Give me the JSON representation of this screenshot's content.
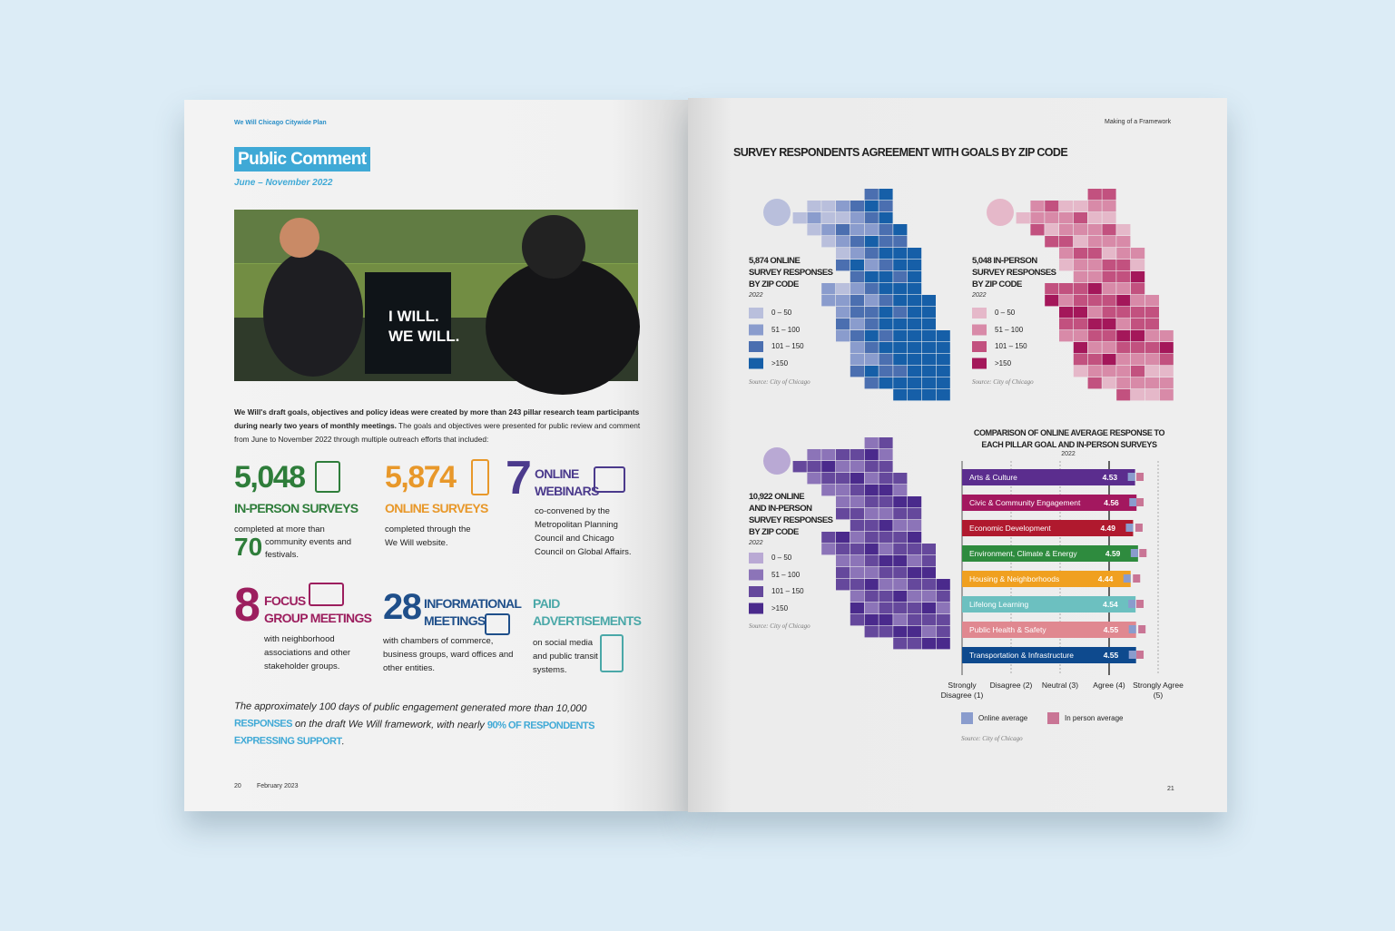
{
  "left_page": {
    "header": "We Will Chicago Citywide Plan",
    "title": "Public Comment",
    "date": "June – November 2022",
    "photo": {
      "sign_lines": [
        "I WILL.",
        "WE WILL."
      ]
    },
    "intro": {
      "bold": "We Will's draft goals, objectives and policy ideas were created by more than 243 pillar research team participants during nearly two years of monthly meetings.",
      "text": "The goals and objectives were presented for public review and comment from June to November 2022 through multiple outreach efforts that included:"
    },
    "stats": [
      {
        "number": "5,048",
        "label": [
          "IN-PERSON SURVEYS"
        ],
        "text": "completed at more than",
        "second_number": "70",
        "second_text": "community events and festivals.",
        "color": "#2e7d3a"
      },
      {
        "number": "5,874",
        "label": [
          "ONLINE SURVEYS"
        ],
        "text": "completed through the We Will website.",
        "color": "#e8982a"
      },
      {
        "number": "7",
        "label": [
          "ONLINE",
          "WEBINARS"
        ],
        "text": "co-convened by the Metropolitan Planning Council and Chicago Council on Global Affairs.",
        "color": "#4b3a8c"
      },
      {
        "number": "8",
        "label": [
          "FOCUS",
          "GROUP MEETINGS"
        ],
        "text": "with neighborhood associations and other stakeholder groups.",
        "color": "#9c1e5e"
      },
      {
        "number": "28",
        "label": [
          "INFORMATIONAL",
          "MEETINGS"
        ],
        "text": "with chambers of commerce, business groups, ward offices and other entities.",
        "color": "#1f4f8a"
      },
      {
        "label": [
          "PAID",
          "ADVERTISEMENTS"
        ],
        "text": "on social media and public transit systems.",
        "color": "#4aa8a8"
      }
    ],
    "closing": {
      "text1": "The approximately 100 days of public engagement generated more than 10,000",
      "highlight1": "RESPONSES",
      "text2": "on the draft We Will framework, with nearly",
      "highlight2": "90% OF RESPONDENTS EXPRESSING SUPPORT",
      "end": "."
    },
    "footer": {
      "page": "20",
      "date": "February 2023"
    }
  },
  "right_page": {
    "header": "Making of a Framework",
    "title": "SURVEY RESPONDENTS AGREEMENT WITH GOALS BY ZIP CODE",
    "maps": [
      {
        "label": [
          "5,874 ONLINE",
          "SURVEY RESPONSES",
          "BY ZIP CODE"
        ],
        "year": "2022",
        "legend": [
          {
            "label": "0 – 50",
            "color": "#b9bfdc"
          },
          {
            "label": "51 – 100",
            "color": "#8a9ccd"
          },
          {
            "label": "101 – 150",
            "color": "#4b6fb0"
          },
          {
            "label": ">150",
            "color": "#165fa8"
          }
        ],
        "source": "Source: City of Chicago"
      },
      {
        "label": [
          "5,048 IN-PERSON",
          "SURVEY RESPONSES",
          "BY ZIP CODE"
        ],
        "year": "2022",
        "legend": [
          {
            "label": "0 – 50",
            "color": "#e5b8c9"
          },
          {
            "label": "51 – 100",
            "color": "#d88aa8"
          },
          {
            "label": "101 – 150",
            "color": "#c2517f"
          },
          {
            "label": ">150",
            "color": "#a4175a"
          }
        ],
        "source": "Source: City of Chicago"
      },
      {
        "label": [
          "10,922 ONLINE",
          "AND IN-PERSON",
          "SURVEY RESPONSES",
          "BY ZIP CODE"
        ],
        "year": "2022",
        "legend": [
          {
            "label": "0 – 50",
            "color": "#b9a9d4"
          },
          {
            "label": "51 – 100",
            "color": "#8c74b8"
          },
          {
            "label": "101 – 150",
            "color": "#65489c"
          },
          {
            "label": ">150",
            "color": "#4a2a8c"
          }
        ],
        "source": "Source: City of Chicago"
      }
    ],
    "page": "21"
  },
  "chart_data": {
    "type": "bar",
    "orientation": "horizontal",
    "title": "COMPARISON OF ONLINE AVERAGE RESPONSE TO EACH PILLAR GOAL AND IN-PERSON SURVEYS",
    "subtitle": "2022",
    "categories": [
      "Arts & Culture",
      "Civic & Community Engagement",
      "Economic Development",
      "Environment, Climate & Energy",
      "Housing & Neighborhoods",
      "Lifelong Learning",
      "Public Health & Safety",
      "Transportation & Infrastructure"
    ],
    "bar_colors": [
      "#5b2d8e",
      "#a3185f",
      "#b0192e",
      "#2e8b3e",
      "#f0a020",
      "#6cc0c0",
      "#e08890",
      "#0e4a8e"
    ],
    "series": [
      {
        "name": "Online average",
        "color": "#8a9ccd",
        "values": [
          4.53,
          4.56,
          4.49,
          4.59,
          4.44,
          4.54,
          4.55,
          4.55
        ]
      },
      {
        "name": "In person average",
        "color": "#c97595",
        "values": [
          4.63,
          4.63,
          4.61,
          4.69,
          4.56,
          4.63,
          4.67,
          4.63
        ]
      }
    ],
    "xlim": [
      1,
      5
    ],
    "xticks": [
      {
        "value": 1,
        "label": "Strongly Disagree (1)"
      },
      {
        "value": 2,
        "label": "Disagree (2)"
      },
      {
        "value": 3,
        "label": "Neutral (3)"
      },
      {
        "value": 4,
        "label": "Agree (4)"
      },
      {
        "value": 5,
        "label": "Strongly Agree (5)"
      }
    ],
    "reference_line": 4,
    "grid": true,
    "legend": "bottom",
    "source": "Source: City of Chicago"
  }
}
